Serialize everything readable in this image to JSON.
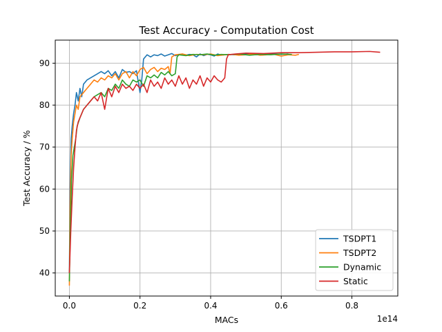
{
  "chart_data": {
    "type": "line",
    "title": "Test Accuracy - Computation Cost",
    "xlabel": "MACs",
    "ylabel": "Test Accuracy / %",
    "x_offset_text": "1e14",
    "xlim": [
      -0.04,
      0.93
    ],
    "ylim": [
      34.5,
      95.5
    ],
    "xticks": [
      0.0,
      0.2,
      0.4,
      0.6,
      0.8
    ],
    "xtick_labels": [
      "0.0",
      "0.2",
      "0.4",
      "0.6",
      "0.8"
    ],
    "yticks": [
      40,
      50,
      60,
      70,
      80,
      90
    ],
    "ytick_labels": [
      "40",
      "50",
      "60",
      "70",
      "80",
      "90"
    ],
    "grid": true,
    "legend_position": "lower-right",
    "series": [
      {
        "name": "TSDPT1",
        "color": "#1f77b4",
        "x": [
          0.0,
          0.002,
          0.005,
          0.008,
          0.012,
          0.016,
          0.02,
          0.025,
          0.03,
          0.035,
          0.04,
          0.05,
          0.06,
          0.07,
          0.08,
          0.09,
          0.1,
          0.11,
          0.12,
          0.13,
          0.14,
          0.15,
          0.16,
          0.17,
          0.18,
          0.19,
          0.2,
          0.205,
          0.21,
          0.22,
          0.23,
          0.24,
          0.25,
          0.26,
          0.27,
          0.28,
          0.29,
          0.3,
          0.31,
          0.32,
          0.33,
          0.34,
          0.35,
          0.36,
          0.37,
          0.38,
          0.39,
          0.4,
          0.41,
          0.42,
          0.43,
          0.44,
          0.45,
          0.47,
          0.5,
          0.53,
          0.56,
          0.6,
          0.62
        ],
        "y": [
          40,
          60,
          72,
          75,
          78,
          80,
          83,
          81,
          84,
          82,
          85,
          86,
          86.5,
          87,
          87.5,
          88,
          87.5,
          88.2,
          87,
          88,
          86.5,
          88.5,
          87.8,
          88,
          87.5,
          88.2,
          83,
          86,
          91,
          92,
          91.5,
          92,
          91.8,
          92.2,
          91.7,
          92,
          92.3,
          91.8,
          92,
          92.2,
          91.9,
          92.1,
          92,
          91.5,
          92.2,
          91.8,
          92.1,
          92,
          91.7,
          92.2,
          91.9,
          92,
          92.1,
          92,
          92.2,
          92,
          92.3,
          92.1,
          92.2
        ]
      },
      {
        "name": "TSDPT2",
        "color": "#ff7f0e",
        "x": [
          0.0,
          0.002,
          0.005,
          0.008,
          0.012,
          0.016,
          0.02,
          0.025,
          0.03,
          0.04,
          0.05,
          0.06,
          0.07,
          0.08,
          0.09,
          0.1,
          0.11,
          0.12,
          0.13,
          0.14,
          0.15,
          0.16,
          0.17,
          0.18,
          0.19,
          0.2,
          0.21,
          0.22,
          0.23,
          0.24,
          0.25,
          0.26,
          0.27,
          0.28,
          0.285,
          0.29,
          0.3,
          0.32,
          0.34,
          0.36,
          0.38,
          0.4,
          0.42,
          0.44,
          0.46,
          0.48,
          0.5,
          0.52,
          0.54,
          0.56,
          0.58,
          0.6,
          0.62,
          0.64,
          0.65
        ],
        "y": [
          37,
          55,
          68,
          72,
          76,
          78,
          80,
          79,
          82,
          83,
          84,
          85,
          86,
          85.5,
          86.5,
          86,
          87,
          86.5,
          87.5,
          86,
          87.5,
          88,
          86.5,
          88,
          87,
          88.5,
          89,
          87.5,
          88.5,
          89,
          88,
          88.8,
          88.5,
          89.2,
          87.5,
          91.5,
          92,
          92.2,
          91.8,
          92.1,
          92,
          92.2,
          91.8,
          92,
          92.1,
          91.9,
          92,
          92.2,
          91.9,
          92,
          92.1,
          91.7,
          92,
          91.9,
          92.1
        ]
      },
      {
        "name": "Dynamic",
        "color": "#2ca02c",
        "x": [
          0.0,
          0.003,
          0.006,
          0.01,
          0.014,
          0.018,
          0.022,
          0.026,
          0.03,
          0.035,
          0.04,
          0.05,
          0.06,
          0.07,
          0.08,
          0.09,
          0.1,
          0.11,
          0.12,
          0.13,
          0.14,
          0.15,
          0.16,
          0.17,
          0.18,
          0.19,
          0.2,
          0.21,
          0.22,
          0.23,
          0.24,
          0.25,
          0.26,
          0.27,
          0.28,
          0.29,
          0.3,
          0.305,
          0.31,
          0.33,
          0.35,
          0.37,
          0.39,
          0.41,
          0.43,
          0.45,
          0.48,
          0.51,
          0.54,
          0.57,
          0.6,
          0.63
        ],
        "y": [
          38,
          52,
          62,
          68,
          70,
          72,
          75,
          76,
          77,
          78,
          79,
          80,
          81,
          82,
          82.5,
          83,
          82,
          84,
          83.5,
          85,
          84,
          86,
          85,
          84.5,
          86,
          85.5,
          86,
          84.5,
          87,
          86.5,
          87.2,
          86.5,
          87.8,
          87.2,
          88,
          87,
          87.5,
          91.5,
          92,
          91.8,
          92.1,
          92,
          92.2,
          91.9,
          92.1,
          92,
          92.2,
          91.9,
          92.1,
          92,
          92.2,
          92.1
        ]
      },
      {
        "name": "Static",
        "color": "#d62728",
        "x": [
          0.0,
          0.004,
          0.008,
          0.012,
          0.016,
          0.02,
          0.025,
          0.03,
          0.035,
          0.04,
          0.05,
          0.06,
          0.07,
          0.08,
          0.09,
          0.1,
          0.11,
          0.12,
          0.13,
          0.14,
          0.15,
          0.16,
          0.17,
          0.18,
          0.19,
          0.2,
          0.21,
          0.22,
          0.23,
          0.24,
          0.25,
          0.26,
          0.27,
          0.28,
          0.29,
          0.3,
          0.31,
          0.32,
          0.33,
          0.34,
          0.35,
          0.36,
          0.37,
          0.38,
          0.39,
          0.4,
          0.41,
          0.42,
          0.43,
          0.44,
          0.445,
          0.45,
          0.47,
          0.5,
          0.55,
          0.6,
          0.65,
          0.7,
          0.75,
          0.8,
          0.85,
          0.88
        ],
        "y": [
          40,
          50,
          58,
          65,
          70,
          74,
          76,
          77,
          78,
          79,
          80,
          81,
          82,
          81,
          83,
          79,
          84,
          82,
          84.5,
          83,
          85,
          84,
          84.5,
          83.5,
          85,
          84,
          85,
          83,
          86,
          84.5,
          85.5,
          84,
          86.5,
          85,
          86,
          84.5,
          87,
          85,
          86.5,
          84,
          86,
          85,
          87,
          84.5,
          86.5,
          85.5,
          87,
          86,
          85.5,
          86.5,
          91,
          92,
          92.2,
          92.4,
          92.3,
          92.5,
          92.5,
          92.6,
          92.7,
          92.7,
          92.8,
          92.6
        ]
      }
    ]
  }
}
